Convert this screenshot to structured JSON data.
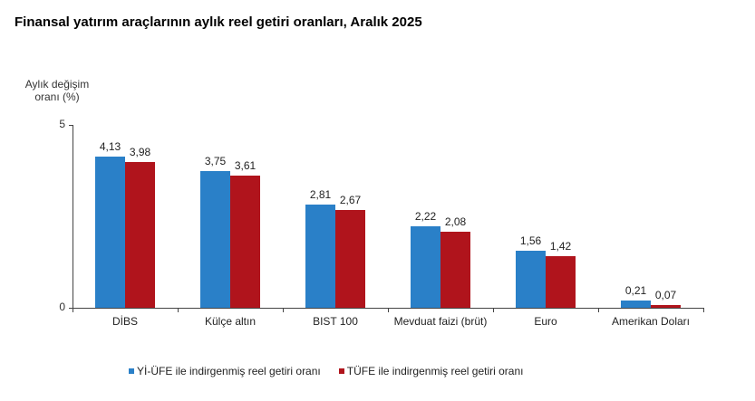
{
  "chart_data": {
    "type": "bar",
    "title": "Finansal yatırım araçlarının aylık reel getiri oranları, Aralık 2025",
    "xlabel": "",
    "ylabel": "Aylık değişim oranı (%)",
    "ylim": [
      0,
      5
    ],
    "yticks": [
      "0",
      "5"
    ],
    "grid": false,
    "legend_position": "bottom",
    "categories": [
      "DİBS",
      "Külçe altın",
      "BIST 100",
      "Mevduat faizi (brüt)",
      "Euro",
      "Amerikan Doları"
    ],
    "series": [
      {
        "name": "Yİ-ÜFE ile indirgenmiş reel getiri oranı",
        "color": "#2a80c8",
        "values": [
          4.13,
          3.75,
          2.81,
          2.22,
          1.56,
          0.21
        ],
        "labels": [
          "4,13",
          "3,75",
          "2,81",
          "2,22",
          "1,56",
          "0,21"
        ]
      },
      {
        "name": "TÜFE ile indirgenmiş reel getiri oranı",
        "color": "#b0141c",
        "values": [
          3.98,
          3.61,
          2.67,
          2.08,
          1.42,
          0.07
        ],
        "labels": [
          "3,98",
          "3,61",
          "2,67",
          "2,08",
          "1,42",
          "0,07"
        ]
      }
    ]
  },
  "header": {
    "title": "Finansal yatırım araçlarının aylık reel getiri oranları, Aralık 2025"
  },
  "axis": {
    "ylabel_line1": "Aylık değişim",
    "ylabel_line2": "oranı (%)",
    "ytick_top": "5",
    "ytick_bottom": "0"
  },
  "legend": {
    "items": [
      {
        "label": "Yİ-ÜFE ile indirgenmiş reel getiri oranı",
        "color": "#2a80c8"
      },
      {
        "label": "TÜFE ile indirgenmiş reel getiri oranı",
        "color": "#b0141c"
      }
    ]
  }
}
